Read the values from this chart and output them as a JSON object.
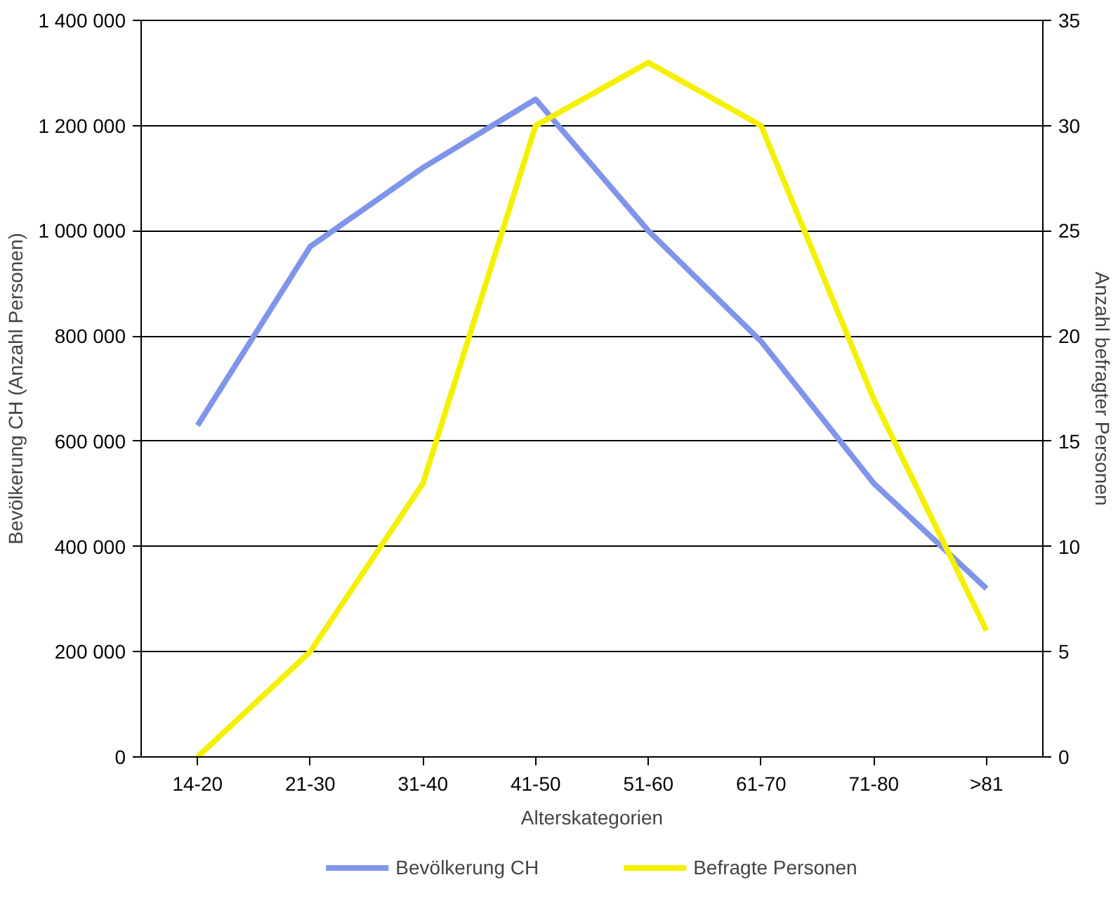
{
  "chart_data": {
    "type": "line",
    "xlabel": "Alterskategorien",
    "ylabel": "Bevölkerung CH (Anzahl Personen)",
    "y2label": "Anzahl befragter Personen",
    "categories": [
      "14-20",
      "21-30",
      "31-40",
      "41-50",
      "51-60",
      "61-70",
      "71-80",
      ">81"
    ],
    "series": [
      {
        "name": "Bevölkerung CH",
        "color": "#7f95ea",
        "values": [
          630000,
          970000,
          1120000,
          1250000,
          1000000,
          790000,
          520000,
          320000
        ]
      },
      {
        "name": "Befragte Personen",
        "color": "#f5f000",
        "axis": "y2",
        "values": [
          0,
          5,
          13,
          30,
          33,
          30,
          17,
          6
        ]
      }
    ],
    "ylim": [
      0,
      1400000
    ],
    "yticks": [
      {
        "value": 0,
        "label": "0"
      },
      {
        "value": 200000,
        "label": "200 000"
      },
      {
        "value": 400000,
        "label": "400 000"
      },
      {
        "value": 600000,
        "label": "600 000"
      },
      {
        "value": 800000,
        "label": "800 000"
      },
      {
        "value": 1000000,
        "label": "1 000 000"
      },
      {
        "value": 1200000,
        "label": "1 200 000"
      },
      {
        "value": 1400000,
        "label": "1 400 000"
      }
    ],
    "y2lim": [
      0,
      35
    ],
    "y2ticks": [
      0,
      5,
      10,
      15,
      20,
      25,
      30,
      35
    ],
    "grid": "y",
    "legend": "bottom",
    "marker": "none",
    "line_style": "solid"
  }
}
